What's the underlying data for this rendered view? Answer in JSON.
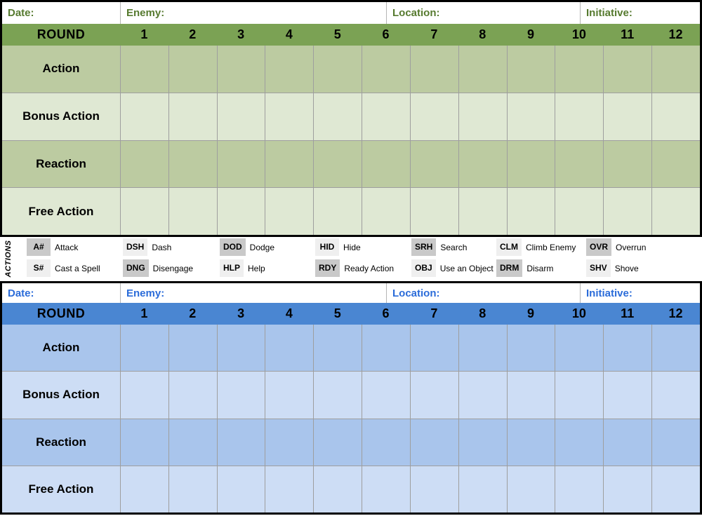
{
  "theme": {
    "table_border": "#000000",
    "grid_line": "#9e9e9e",
    "green_header": "#7ba254",
    "green_row_dark": "#bccba1",
    "green_row_light": "#dfe8d3",
    "green_label_text": "#567a2f",
    "blue_header": "#4a86d2",
    "blue_row_dark": "#a9c5ec",
    "blue_row_light": "#cdddf5",
    "blue_label_text": "#2b6cd9",
    "badge_dark": "#c9c9c9",
    "badge_light": "#efefef"
  },
  "tables": [
    {
      "name": "green-encounter-tracker",
      "header": {
        "date": "Date:",
        "enemy": "Enemy:",
        "location": "Location:",
        "initiative": "Initiative:"
      },
      "round_label": "ROUND",
      "round_numbers": [
        "1",
        "2",
        "3",
        "4",
        "5",
        "6",
        "7",
        "8",
        "9",
        "10",
        "11",
        "12"
      ],
      "action_rows": [
        "Action",
        "Bonus Action",
        "Reaction",
        "Free Action"
      ]
    },
    {
      "name": "blue-encounter-tracker",
      "header": {
        "date": "Date:",
        "enemy": "Enemy:",
        "location": "Location:",
        "initiative": "Initiative:"
      },
      "round_label": "ROUND",
      "round_numbers": [
        "1",
        "2",
        "3",
        "4",
        "5",
        "6",
        "7",
        "8",
        "9",
        "10",
        "11",
        "12"
      ],
      "action_rows": [
        "Action",
        "Bonus Action",
        "Reaction",
        "Free Action"
      ]
    }
  ],
  "legend": {
    "title": "ACTIONS",
    "rows": [
      [
        {
          "abbr": "A#",
          "desc": "Attack",
          "shade": "dark"
        },
        {
          "abbr": "DSH",
          "desc": "Dash",
          "shade": "light"
        },
        {
          "abbr": "DOD",
          "desc": "Dodge",
          "shade": "dark"
        },
        {
          "abbr": "HID",
          "desc": "Hide",
          "shade": "light"
        },
        {
          "abbr": "SRH",
          "desc": "Search",
          "shade": "dark"
        },
        {
          "abbr": "CLM",
          "desc": "Climb Enemy",
          "shade": "light"
        },
        {
          "abbr": "OVR",
          "desc": "Overrun",
          "shade": "dark"
        }
      ],
      [
        {
          "abbr": "S#",
          "desc": "Cast a Spell",
          "shade": "light"
        },
        {
          "abbr": "DNG",
          "desc": "Disengage",
          "shade": "dark"
        },
        {
          "abbr": "HLP",
          "desc": "Help",
          "shade": "light"
        },
        {
          "abbr": "RDY",
          "desc": "Ready Action",
          "shade": "dark"
        },
        {
          "abbr": "OBJ",
          "desc": "Use an Object",
          "shade": "light"
        },
        {
          "abbr": "DRM",
          "desc": "Disarm",
          "shade": "dark"
        },
        {
          "abbr": "SHV",
          "desc": "Shove",
          "shade": "light"
        }
      ]
    ]
  }
}
